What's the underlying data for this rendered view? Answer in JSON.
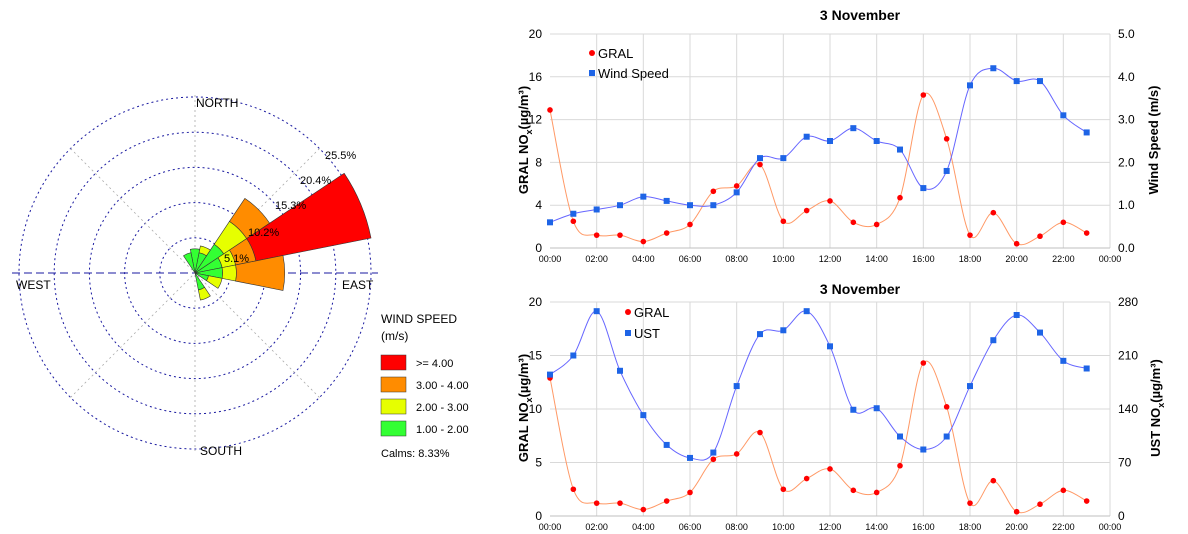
{
  "wind_rose": {
    "directions": {
      "north": "NORTH",
      "south": "SOUTH",
      "east": "EAST",
      "west": "WEST"
    },
    "ring_labels": [
      "5.1%",
      "10.2%",
      "15.3%",
      "20.4%",
      "25.5%"
    ],
    "ring_values": [
      5.1,
      10.2,
      15.3,
      20.4,
      25.5
    ],
    "legend": {
      "title_line1": "WIND SPEED",
      "title_line2": "(m/s)",
      "items": [
        {
          "label": ">= 4.00",
          "color": "#ff0000"
        },
        {
          "label": "3.00 - 4.00",
          "color": "#ff8c00"
        },
        {
          "label": "2.00 - 3.00",
          "color": "#e6ff00"
        },
        {
          "label": "1.00 - 2.00",
          "color": "#33ff33"
        }
      ]
    },
    "calms": "Calms: 8.33%"
  },
  "chart_data": [
    {
      "type": "line",
      "title": "3 November",
      "x": [
        "00:00",
        "01:00",
        "02:00",
        "03:00",
        "04:00",
        "05:00",
        "06:00",
        "07:00",
        "08:00",
        "09:00",
        "10:00",
        "11:00",
        "12:00",
        "13:00",
        "14:00",
        "15:00",
        "16:00",
        "17:00",
        "18:00",
        "19:00",
        "20:00",
        "21:00",
        "22:00",
        "23:00"
      ],
      "xticks": [
        "00:00",
        "02:00",
        "04:00",
        "06:00",
        "08:00",
        "10:00",
        "12:00",
        "14:00",
        "16:00",
        "18:00",
        "20:00",
        "22:00",
        "00:00"
      ],
      "ylabel_left": "GRAL NO",
      "ylabel_left_sub": "x",
      "ylabel_left_unit": "(µg/m³)",
      "ylabel_right": "Wind Speed (m/s)",
      "ylim_left": [
        0,
        20
      ],
      "ylim_right": [
        0,
        5
      ],
      "yticks_left": [
        "0",
        "4",
        "8",
        "12",
        "16",
        "20"
      ],
      "yticks_right": [
        "0.0",
        "1.0",
        "2.0",
        "3.0",
        "4.0",
        "5.0"
      ],
      "legend_placement": "top-left",
      "series": [
        {
          "name": "GRAL",
          "axis": "left",
          "color": "#ff0000",
          "line_color": "#ff9966",
          "marker": "circle",
          "values": [
            12.9,
            2.5,
            1.2,
            1.2,
            0.6,
            1.4,
            2.2,
            5.3,
            5.8,
            7.8,
            2.5,
            3.5,
            4.4,
            2.4,
            2.2,
            4.7,
            14.3,
            10.2,
            1.2,
            3.3,
            0.4,
            1.1,
            2.4,
            1.4
          ]
        },
        {
          "name": "Wind Speed",
          "axis": "right",
          "color": "#1e64e6",
          "line_color": "#6666ff",
          "marker": "square",
          "values": [
            0.6,
            0.8,
            0.9,
            1.0,
            1.2,
            1.1,
            1.0,
            1.0,
            1.3,
            2.1,
            2.1,
            2.6,
            2.5,
            2.8,
            2.5,
            2.3,
            1.4,
            1.8,
            3.8,
            4.2,
            3.9,
            3.9,
            3.1,
            2.7
          ]
        }
      ]
    },
    {
      "type": "line",
      "title": "3 November",
      "x": [
        "00:00",
        "01:00",
        "02:00",
        "03:00",
        "04:00",
        "05:00",
        "06:00",
        "07:00",
        "08:00",
        "09:00",
        "10:00",
        "11:00",
        "12:00",
        "13:00",
        "14:00",
        "15:00",
        "16:00",
        "17:00",
        "18:00",
        "19:00",
        "20:00",
        "21:00",
        "22:00",
        "23:00"
      ],
      "xticks": [
        "00:00",
        "02:00",
        "04:00",
        "06:00",
        "08:00",
        "10:00",
        "12:00",
        "14:00",
        "16:00",
        "18:00",
        "20:00",
        "22:00",
        "00:00"
      ],
      "ylabel_left": "GRAL NO",
      "ylabel_left_sub": "x",
      "ylabel_left_unit": "(µg/m³)",
      "ylabel_right": "UST NO",
      "ylabel_right_sub": "x",
      "ylabel_right_unit": "(µg/m³)",
      "ylim_left": [
        0,
        20
      ],
      "ylim_right": [
        0,
        280
      ],
      "yticks_left": [
        "0",
        "5",
        "10",
        "15",
        "20"
      ],
      "yticks_right": [
        "0",
        "70",
        "140",
        "210",
        "280"
      ],
      "legend_placement": "top-left",
      "series": [
        {
          "name": "GRAL",
          "axis": "left",
          "color": "#ff0000",
          "line_color": "#ff9966",
          "marker": "circle",
          "values": [
            12.9,
            2.5,
            1.2,
            1.2,
            0.6,
            1.4,
            2.2,
            5.3,
            5.8,
            7.8,
            2.5,
            3.5,
            4.4,
            2.4,
            2.2,
            4.7,
            14.3,
            10.2,
            1.2,
            3.3,
            0.4,
            1.1,
            2.4,
            1.4
          ]
        },
        {
          "name": "UST",
          "axis": "right",
          "color": "#1e64e6",
          "line_color": "#6666ff",
          "marker": "square",
          "values": [
            185,
            210,
            268,
            190,
            132,
            93,
            76,
            83,
            170,
            238,
            243,
            268,
            222,
            139,
            141,
            104,
            87,
            104,
            170,
            230,
            263,
            240,
            203,
            193
          ]
        }
      ]
    }
  ]
}
